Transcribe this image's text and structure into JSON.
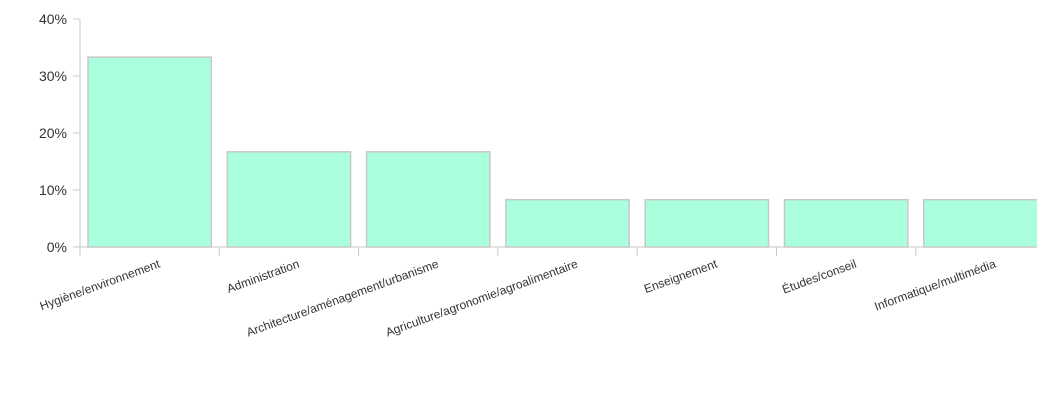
{
  "chart_data": {
    "type": "bar",
    "categories": [
      "Hygiène/environnement",
      "Administration",
      "Architecture/aménagement/urbanisme",
      "Agriculture/agronomie/agroalimentaire",
      "Enseignement",
      "Études/conseil",
      "Informatique/multimédia"
    ],
    "values": [
      33.3,
      16.7,
      16.7,
      8.3,
      8.3,
      8.3,
      8.3
    ],
    "y_unit": "%",
    "ylim": [
      0,
      40
    ],
    "yticks": [
      "0%",
      "10%",
      "20%",
      "30%",
      "40%"
    ],
    "title": "",
    "xlabel": "",
    "ylabel": "",
    "grid": false,
    "bar_fill": "#aaffdd",
    "bar_stroke": "#c8c8c8",
    "axis_color": "#c8c8c8"
  }
}
